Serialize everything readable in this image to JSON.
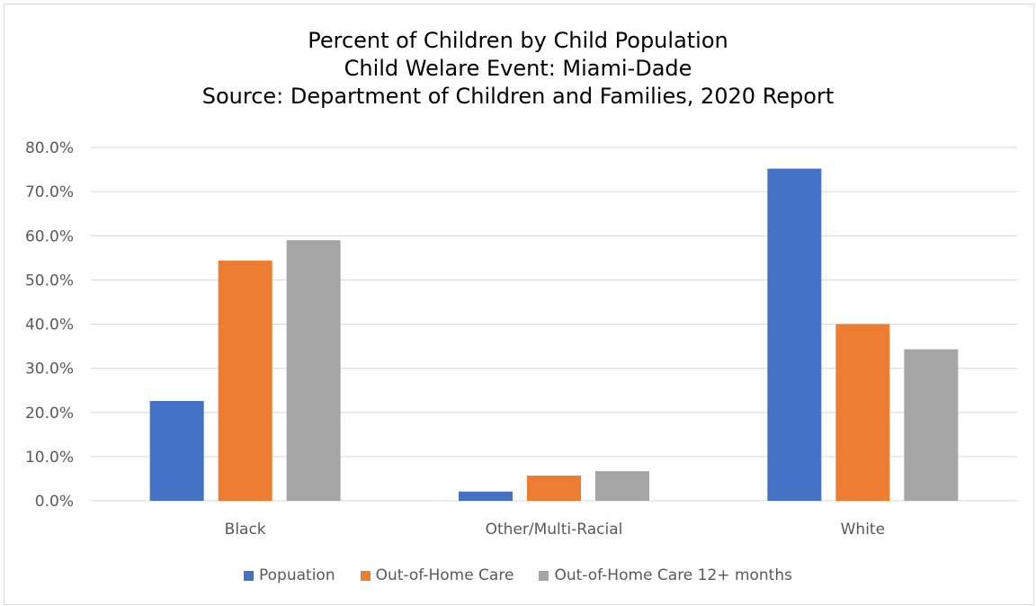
{
  "chart_data": {
    "type": "bar",
    "title_lines": [
      "Percent of Children by Child Population",
      "Child Welare Event: Miami-Dade",
      "Source: Department of Children and Families, 2020 Report"
    ],
    "categories": [
      "Black",
      "Other/Multi-Racial",
      "White"
    ],
    "series": [
      {
        "name": "Popuation",
        "color": "#4472c4",
        "values": [
          22.6,
          2.1,
          75.2
        ]
      },
      {
        "name": "Out-of-Home Care",
        "color": "#ed7d31",
        "values": [
          54.4,
          5.7,
          40.0
        ]
      },
      {
        "name": "Out-of-Home Care 12+ months",
        "color": "#a5a5a5",
        "values": [
          59.0,
          6.7,
          34.3
        ]
      }
    ],
    "ylim": [
      0,
      80
    ],
    "y_ticks": [
      0,
      10,
      20,
      30,
      40,
      50,
      60,
      70,
      80
    ],
    "y_tick_labels": [
      "0.0%",
      "10.0%",
      "20.0%",
      "30.0%",
      "40.0%",
      "50.0%",
      "60.0%",
      "70.0%",
      "80.0%"
    ],
    "grid": true,
    "legend_position": "bottom",
    "xlabel": "",
    "ylabel": ""
  }
}
